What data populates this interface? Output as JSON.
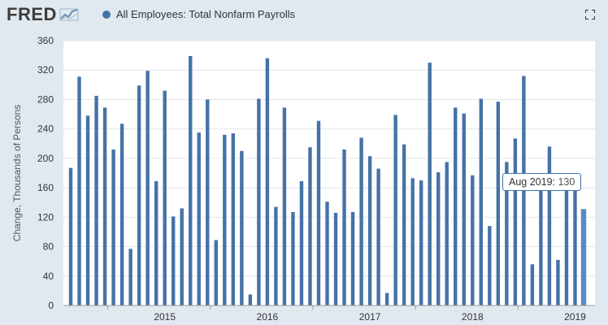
{
  "header": {
    "logo_text": "FRED",
    "legend_label": "All Employees: Total Nonfarm Payrolls",
    "series_color": "#4572a7",
    "expand_icon": "fullscreen-icon"
  },
  "tooltip": {
    "date": "Aug 2019:",
    "value": "130"
  },
  "chart_data": {
    "type": "bar",
    "title": "",
    "xlabel": "",
    "ylabel": "Change, Thousands of Persons",
    "ylim": [
      0,
      360
    ],
    "y_ticks": [
      0,
      40,
      80,
      120,
      160,
      200,
      240,
      280,
      320,
      360
    ],
    "x_tick_labels": [
      "2015",
      "2016",
      "2017",
      "2018",
      "2019"
    ],
    "x_range": [
      "2014-08",
      "2019-08"
    ],
    "grid": true,
    "bar_color": "#4572a7",
    "series": [
      {
        "name": "All Employees: Total Nonfarm Payrolls",
        "points": [
          [
            "2014-08",
            187
          ],
          [
            "2014-09",
            311
          ],
          [
            "2014-10",
            258
          ],
          [
            "2014-11",
            285
          ],
          [
            "2014-12",
            269
          ],
          [
            "2015-01",
            212
          ],
          [
            "2015-02",
            247
          ],
          [
            "2015-03",
            77
          ],
          [
            "2015-04",
            299
          ],
          [
            "2015-05",
            319
          ],
          [
            "2015-06",
            169
          ],
          [
            "2015-07",
            292
          ],
          [
            "2015-08",
            121
          ],
          [
            "2015-09",
            132
          ],
          [
            "2015-10",
            339
          ],
          [
            "2015-11",
            235
          ],
          [
            "2015-12",
            280
          ],
          [
            "2016-01",
            89
          ],
          [
            "2016-02",
            232
          ],
          [
            "2016-03",
            234
          ],
          [
            "2016-04",
            210
          ],
          [
            "2016-05",
            15
          ],
          [
            "2016-06",
            281
          ],
          [
            "2016-07",
            336
          ],
          [
            "2016-08",
            134
          ],
          [
            "2016-09",
            269
          ],
          [
            "2016-10",
            127
          ],
          [
            "2016-11",
            169
          ],
          [
            "2016-12",
            215
          ],
          [
            "2017-01",
            251
          ],
          [
            "2017-02",
            141
          ],
          [
            "2017-03",
            126
          ],
          [
            "2017-04",
            212
          ],
          [
            "2017-05",
            127
          ],
          [
            "2017-06",
            228
          ],
          [
            "2017-07",
            203
          ],
          [
            "2017-08",
            186
          ],
          [
            "2017-09",
            17
          ],
          [
            "2017-10",
            259
          ],
          [
            "2017-11",
            219
          ],
          [
            "2017-12",
            173
          ],
          [
            "2018-01",
            170
          ],
          [
            "2018-02",
            330
          ],
          [
            "2018-03",
            181
          ],
          [
            "2018-04",
            195
          ],
          [
            "2018-05",
            269
          ],
          [
            "2018-06",
            261
          ],
          [
            "2018-07",
            177
          ],
          [
            "2018-08",
            281
          ],
          [
            "2018-09",
            108
          ],
          [
            "2018-10",
            277
          ],
          [
            "2018-11",
            195
          ],
          [
            "2018-12",
            227
          ],
          [
            "2019-01",
            312
          ],
          [
            "2019-02",
            56
          ],
          [
            "2019-03",
            170
          ],
          [
            "2019-04",
            216
          ],
          [
            "2019-05",
            62
          ],
          [
            "2019-06",
            178
          ],
          [
            "2019-07",
            159
          ],
          [
            "2019-08",
            130
          ]
        ]
      }
    ],
    "highlighted_point": "2019-08"
  }
}
